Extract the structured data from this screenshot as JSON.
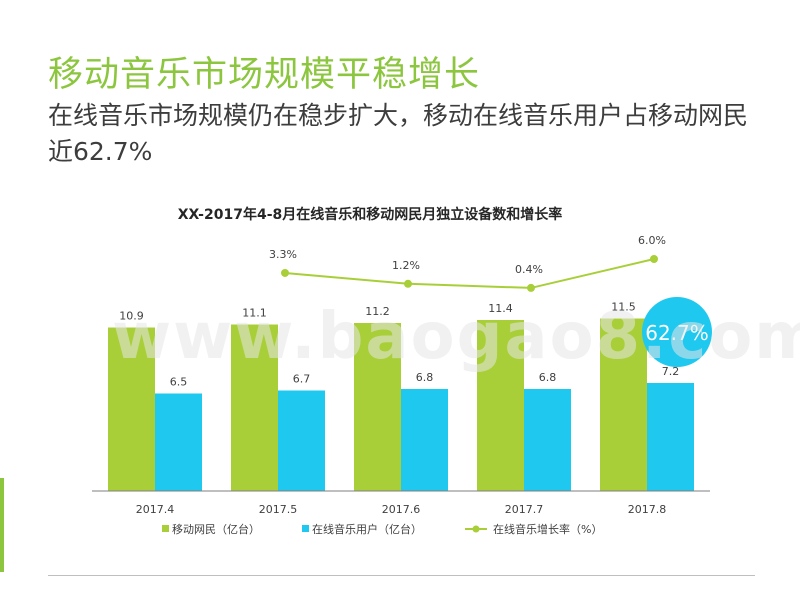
{
  "page": {
    "title": "移动音乐市场规模平稳增长",
    "subtitle": "在线音乐市场规模仍在稳步扩大，移动在线音乐用户占移动网民近62.7%",
    "watermark": "www.baogao8.com"
  },
  "chart_data": {
    "type": "bar",
    "title": "XX-2017年4-8月在线音乐和移动网民月独立设备数和增长率",
    "categories": [
      "2017.4",
      "2017.5",
      "2017.6",
      "2017.7",
      "2017.8"
    ],
    "series": [
      {
        "name": "移动网民（亿台）",
        "type": "bar",
        "color": "#a8cf38",
        "values": [
          10.9,
          11.1,
          11.2,
          11.4,
          11.5
        ],
        "labels": [
          "10.9",
          "11.1",
          "11.2",
          "11.4",
          "11.5"
        ]
      },
      {
        "name": "在线音乐用户（亿台）",
        "type": "bar",
        "color": "#1ec8ef",
        "values": [
          6.5,
          6.7,
          6.8,
          6.8,
          7.2
        ],
        "labels": [
          "6.5",
          "6.7",
          "6.8",
          "6.8",
          "7.2"
        ]
      },
      {
        "name": "在线音乐增长率（%）",
        "type": "line",
        "color": "#a8cf38",
        "x": [
          "2017.5",
          "2017.6",
          "2017.7",
          "2017.8"
        ],
        "values": [
          3.3,
          1.2,
          0.4,
          6.0
        ],
        "labels": [
          "3.3%",
          "1.2%",
          "0.4%",
          "6.0%"
        ]
      }
    ],
    "ylim": [
      0,
      13
    ],
    "grid": false,
    "legend": "bottom",
    "annotation": {
      "text": "62.7%",
      "color": "#1ec8ef"
    }
  }
}
